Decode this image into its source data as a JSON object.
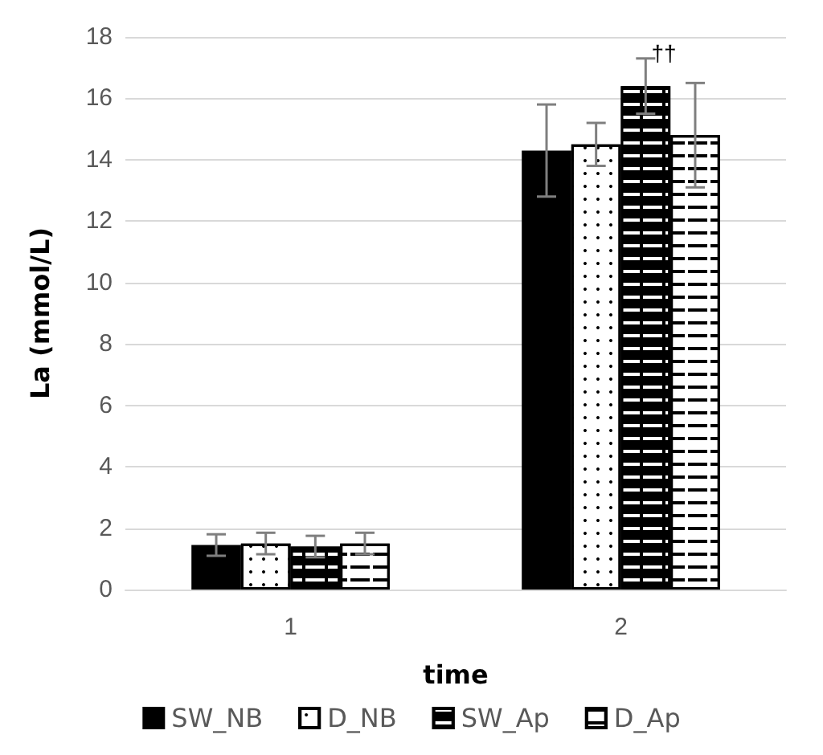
{
  "chart_data": {
    "type": "bar",
    "xlabel": "time",
    "ylabel": "La (mmol/L)",
    "categories": [
      "1",
      "2"
    ],
    "series": [
      {
        "name": "SW_NB",
        "color": "#000000",
        "values": [
          1.45,
          14.3
        ],
        "errors": [
          0.35,
          1.5
        ]
      },
      {
        "name": "D_NB",
        "color": "#ffffff",
        "values": [
          1.5,
          14.5
        ],
        "errors": [
          0.35,
          0.7
        ]
      },
      {
        "name": "SW_Ap",
        "color": "#000000",
        "values": [
          1.4,
          16.4
        ],
        "errors": [
          0.35,
          0.9
        ]
      },
      {
        "name": "D_Ap",
        "color": "#ffffff",
        "values": [
          1.5,
          14.8
        ],
        "errors": [
          0.35,
          1.7
        ]
      }
    ],
    "ylim": [
      0,
      18
    ],
    "yticks": [
      0,
      2,
      4,
      6,
      8,
      10,
      12,
      14,
      16,
      18
    ],
    "grid": "y",
    "legend": "bottom",
    "annotations": [
      "††"
    ]
  }
}
